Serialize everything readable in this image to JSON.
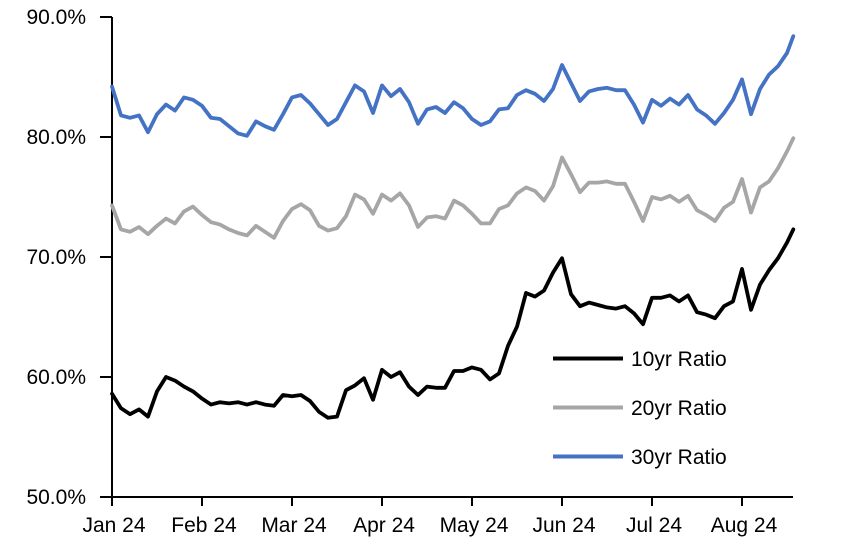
{
  "chart_data": {
    "type": "line",
    "title": "",
    "grid": "off",
    "legend_position": "inside-lower-right",
    "x_axis": {
      "tick_labels": [
        "Jan 24",
        "Feb 24",
        "Mar 24",
        "Apr 24",
        "May 24",
        "Jun 24",
        "Jul 24",
        "Aug 24"
      ],
      "tick_positions_months": [
        0,
        1,
        2,
        3,
        4,
        5,
        6,
        7
      ],
      "range_months": [
        0,
        7.57
      ]
    },
    "y_axis": {
      "tick_labels": [
        "50.0%",
        "60.0%",
        "70.0%",
        "80.0%",
        "90.0%"
      ],
      "tick_values": [
        50,
        60,
        70,
        80,
        90
      ],
      "range": [
        50,
        90
      ],
      "unit": "percent"
    },
    "x_months": [
      0,
      0.1,
      0.2,
      0.3,
      0.4,
      0.5,
      0.6,
      0.7,
      0.8,
      0.9,
      1,
      1.1,
      1.2,
      1.3,
      1.4,
      1.5,
      1.6,
      1.7,
      1.8,
      1.9,
      2,
      2.1,
      2.2,
      2.3,
      2.4,
      2.5,
      2.6,
      2.7,
      2.8,
      2.9,
      3,
      3.1,
      3.2,
      3.3,
      3.4,
      3.5,
      3.6,
      3.7,
      3.8,
      3.9,
      4,
      4.1,
      4.2,
      4.3,
      4.4,
      4.5,
      4.6,
      4.7,
      4.8,
      4.9,
      5,
      5.1,
      5.2,
      5.3,
      5.4,
      5.5,
      5.6,
      5.7,
      5.8,
      5.9,
      6,
      6.1,
      6.2,
      6.3,
      6.4,
      6.5,
      6.6,
      6.7,
      6.8,
      6.9,
      7,
      7.1,
      7.2,
      7.3,
      7.4,
      7.5,
      7.57
    ],
    "series": [
      {
        "name": "10yr Ratio",
        "color": "#000000",
        "values": [
          58.6,
          57.4,
          56.9,
          57.3,
          56.7,
          58.8,
          60.0,
          59.7,
          59.2,
          58.8,
          58.2,
          57.7,
          57.9,
          57.8,
          57.9,
          57.7,
          57.9,
          57.7,
          57.6,
          58.5,
          58.4,
          58.5,
          58.0,
          57.1,
          56.6,
          56.7,
          58.9,
          59.3,
          59.9,
          58.1,
          60.6,
          60.0,
          60.4,
          59.2,
          58.5,
          59.2,
          59.1,
          59.1,
          60.5,
          60.5,
          60.8,
          60.6,
          59.8,
          60.3,
          62.6,
          64.2,
          67.0,
          66.7,
          67.2,
          68.7,
          69.9,
          66.9,
          65.9,
          66.2,
          66.0,
          65.8,
          65.7,
          65.9,
          65.3,
          64.4,
          66.6,
          66.6,
          66.8,
          66.3,
          66.8,
          65.4,
          65.2,
          64.9,
          65.9,
          66.3,
          69.0,
          65.6,
          67.7,
          68.9,
          69.9,
          71.2,
          72.3
        ]
      },
      {
        "name": "20yr Ratio",
        "color": "#A6A6A6",
        "values": [
          74.3,
          72.3,
          72.1,
          72.5,
          71.9,
          72.6,
          73.2,
          72.8,
          73.8,
          74.2,
          73.5,
          72.9,
          72.7,
          72.3,
          72.0,
          71.8,
          72.6,
          72.1,
          71.6,
          73.0,
          74.0,
          74.4,
          73.9,
          72.6,
          72.2,
          72.4,
          73.4,
          75.2,
          74.8,
          73.6,
          75.2,
          74.7,
          75.3,
          74.3,
          72.5,
          73.3,
          73.4,
          73.2,
          74.7,
          74.3,
          73.6,
          72.8,
          72.8,
          74.0,
          74.3,
          75.3,
          75.8,
          75.5,
          74.7,
          75.9,
          78.3,
          76.9,
          75.4,
          76.2,
          76.2,
          76.3,
          76.1,
          76.1,
          74.6,
          73.0,
          75.0,
          74.8,
          75.1,
          74.6,
          75.1,
          73.9,
          73.5,
          73.0,
          74.1,
          74.6,
          76.5,
          73.7,
          75.8,
          76.3,
          77.4,
          78.8,
          79.9
        ]
      },
      {
        "name": "30yr Ratio",
        "color": "#4472C4",
        "values": [
          84.2,
          81.8,
          81.6,
          81.8,
          80.4,
          81.9,
          82.7,
          82.2,
          83.3,
          83.1,
          82.6,
          81.6,
          81.5,
          80.9,
          80.3,
          80.1,
          81.3,
          80.9,
          80.6,
          81.9,
          83.3,
          83.5,
          82.8,
          81.9,
          81.0,
          81.5,
          82.9,
          84.3,
          83.8,
          82.0,
          84.3,
          83.4,
          84.0,
          82.9,
          81.1,
          82.3,
          82.5,
          82.0,
          82.9,
          82.4,
          81.5,
          81.0,
          81.3,
          82.3,
          82.4,
          83.5,
          83.9,
          83.6,
          83.0,
          84.0,
          86.0,
          84.5,
          83.0,
          83.8,
          84.0,
          84.1,
          83.9,
          83.9,
          82.7,
          81.2,
          83.1,
          82.6,
          83.2,
          82.7,
          83.5,
          82.3,
          81.8,
          81.1,
          82.0,
          83.1,
          84.8,
          81.9,
          84.0,
          85.2,
          85.9,
          87.0,
          88.4
        ]
      }
    ]
  }
}
